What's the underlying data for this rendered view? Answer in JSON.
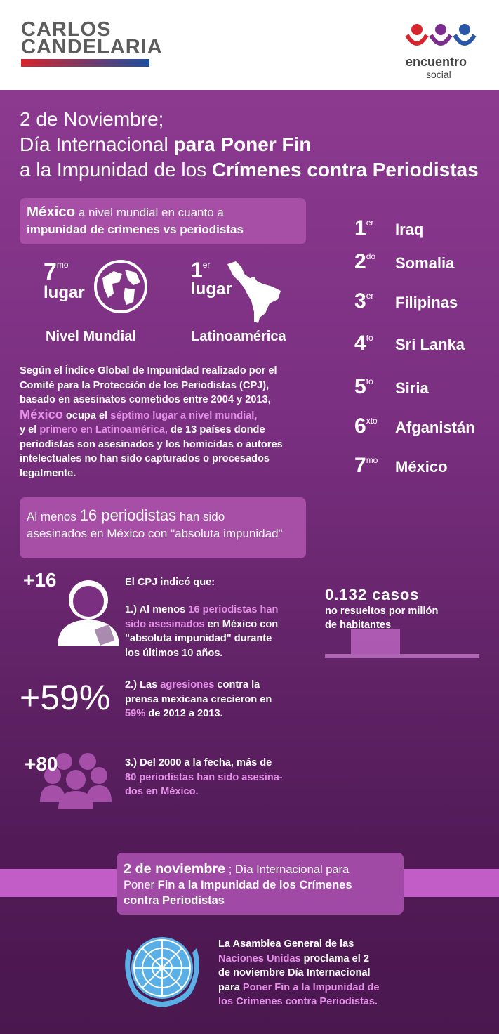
{
  "header": {
    "logo_left": {
      "line1": "CARLOS",
      "line2": "CANDELARIA"
    },
    "logo_right": {
      "line1": "encuentro",
      "line2": "social"
    }
  },
  "title": {
    "lines": [
      [
        "2 de Noviembre;"
      ],
      [
        "Día Internacional ",
        {
          "text": "para Poner Fin",
          "style": "bold"
        }
      ],
      [
        "a la Impunidad de los ",
        {
          "text": "Crímenes contra Periodistas",
          "style": "bold"
        }
      ]
    ]
  },
  "mexico_box": {
    "lines": [
      [
        {
          "text": "México",
          "style": "big-bold"
        },
        "  a nivel mundial en cuanto a"
      ],
      [
        {
          "text": "impunidad de crímenes vs periodistas",
          "style": "bold"
        }
      ]
    ]
  },
  "mexico_rank": [
    {
      "number": "7",
      "suffix": "mo",
      "word": "lugar",
      "label": "Nivel Mundial"
    },
    {
      "number": "1",
      "suffix": "er",
      "word": "lugar",
      "label": "Latinoamérica"
    }
  ],
  "paragraph": {
    "lines": [
      [
        "Según el Índice Global de Impunidad realizado por el"
      ],
      [
        "Comité para la Protección de los Periodistas (CPJ),"
      ],
      [
        "basado en asesinatos cometidos entre 2004 y 2013,"
      ],
      [
        {
          "text": "México",
          "style": "big-pink"
        },
        " ocupa el ",
        {
          "text": "séptimo lugar a nivel mundial,",
          "style": "pink"
        }
      ],
      [
        "y el ",
        {
          "text": "primero en Latinoamérica,",
          "style": "pink"
        },
        " de 13 países donde"
      ],
      [
        {
          "text": "periodistas son asesinados",
          "style": "bold"
        },
        " y los homicidas o autores"
      ],
      [
        "intelectuales ",
        {
          "text": "no han sido capturados o procesados",
          "style": "bold"
        }
      ],
      [
        "legalmente."
      ]
    ]
  },
  "rankings": [
    {
      "number": "1",
      "suffix": "er",
      "country": "Iraq"
    },
    {
      "number": "2",
      "suffix": "do",
      "country": "Somalia"
    },
    {
      "number": "3",
      "suffix": "er",
      "country": "Filipinas"
    },
    {
      "number": "4",
      "suffix": "to",
      "country": "Sri Lanka"
    },
    {
      "number": "5",
      "suffix": "to",
      "country": "Siria"
    },
    {
      "number": "6",
      "suffix": "xto",
      "country": "Afganistán"
    },
    {
      "number": "7",
      "suffix": "mo",
      "country": "México"
    }
  ],
  "section2_box": {
    "lines": [
      [
        "Al menos ",
        {
          "text": "16 periodistas",
          "style": "big"
        },
        " han sido"
      ],
      [
        "asesinados en México con \"absoluta impunidad\""
      ]
    ]
  },
  "stats": {
    "stat1": "+16",
    "intro": "El CPJ indicó que:",
    "item1": {
      "lines": [
        [
          "1.) Al menos ",
          {
            "text": "16 periodistas han",
            "style": "pink"
          }
        ],
        [
          {
            "text": "sido asesinados",
            "style": "pink"
          },
          " en México con"
        ],
        [
          "\"absoluta impunidad\" durante"
        ],
        [
          "los últimos 10 años."
        ]
      ]
    },
    "cases": {
      "value": "0.132 casos",
      "line1": "no resueltos por millón",
      "line2": "de habitantes"
    },
    "stat2": "+59%",
    "item2": {
      "lines": [
        [
          "2.) Las ",
          {
            "text": "agresiones",
            "style": "pink"
          },
          " contra la"
        ],
        [
          "prensa mexicana crecieron en"
        ],
        [
          {
            "text": "59%",
            "style": "pink"
          },
          " de 2012 a 2013."
        ]
      ]
    },
    "stat3": "+80",
    "item3": {
      "lines": [
        [
          "3.) Del 2000 a la fecha, más de"
        ],
        [
          {
            "text": "80 periodistas han sido asesina-",
            "style": "pink"
          }
        ],
        [
          {
            "text": "dos en México.",
            "style": "pink"
          }
        ]
      ]
    }
  },
  "footer_box": {
    "lines": [
      [
        {
          "text": "2 de noviembre",
          "style": "big-bold"
        },
        " ; Día Internacional para"
      ],
      [
        "Poner ",
        {
          "text": "Fin a la Impunidad de los Crímenes",
          "style": "bold"
        }
      ],
      [
        {
          "text": "contra Periodistas",
          "style": "bold"
        }
      ]
    ]
  },
  "un_text": {
    "lines": [
      [
        "La Asamblea General de las"
      ],
      [
        {
          "text": "Naciones Unidas",
          "style": "pink"
        },
        " proclama el 2"
      ],
      [
        "de noviembre Día Internacional"
      ],
      [
        "para ",
        {
          "text": "Poner Fin a la Impunidad de",
          "style": "pink"
        }
      ],
      [
        {
          "text": "los Crímenes contra Periodistas.",
          "style": "pink"
        }
      ]
    ]
  }
}
